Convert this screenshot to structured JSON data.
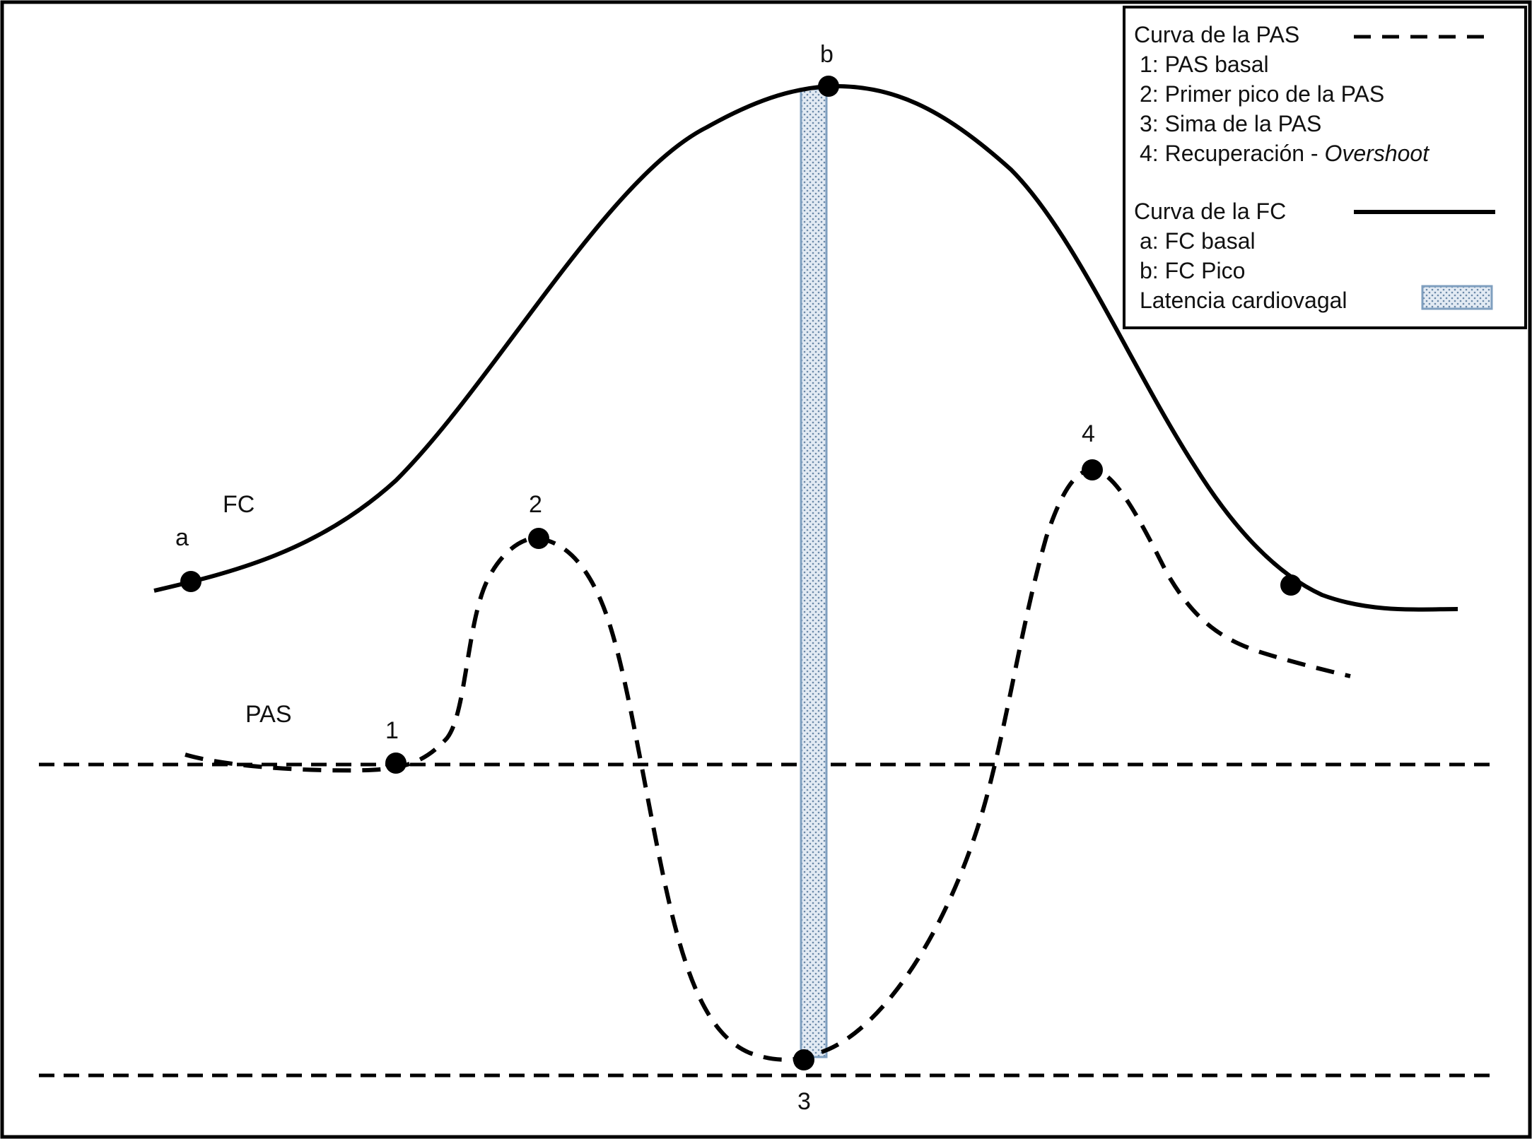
{
  "diagram": {
    "curve_labels": {
      "fc": "FC",
      "pas": "PAS"
    },
    "point_labels": {
      "a": "a",
      "b": "b",
      "p1": "1",
      "p2": "2",
      "p3": "3",
      "p4": "4"
    }
  },
  "legend": {
    "pas_title": "Curva de la PAS",
    "pas_items": [
      "1: PAS basal",
      "2: Primer pico de la PAS",
      "3: Sima de la PAS"
    ],
    "pas_item4_prefix": "4: Recuperación - ",
    "pas_item4_italic": "Overshoot",
    "fc_title": "Curva de la FC",
    "fc_items": [
      "a: FC basal",
      "b: FC Pico"
    ],
    "latency_label": "Latencia cardiovagal"
  },
  "colors": {
    "stroke": "#000000",
    "latency_fill": "#dfe8f2",
    "latency_border": "#7f9fbf",
    "latency_dots": "#5f7f9f"
  }
}
